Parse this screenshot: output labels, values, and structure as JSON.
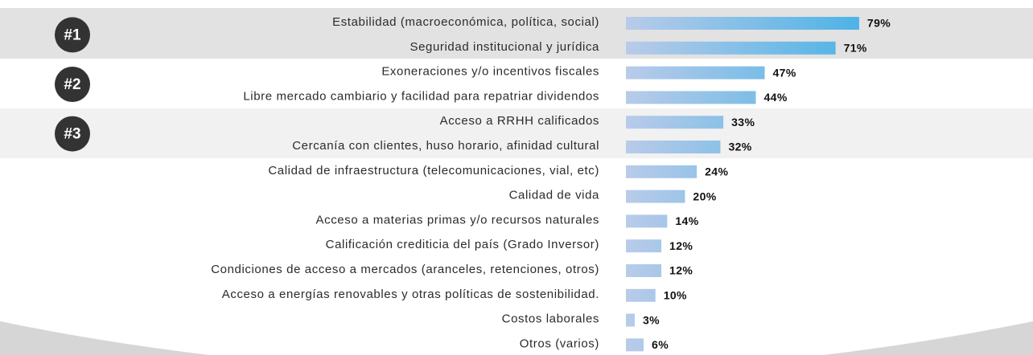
{
  "chart_data": {
    "type": "bar",
    "rank_labels": [
      "#1",
      "#2",
      "#3"
    ],
    "categories": [
      "Estabilidad (macroeconómica, política, social)",
      "Seguridad institucional y jurídica",
      "Exoneraciones y/o incentivos fiscales",
      "Libre mercado cambiario y facilidad para repatriar dividendos",
      "Acceso a RRHH calificados",
      "Cercanía con clientes, huso horario, afinidad cultural",
      "Calidad de infraestructura (telecomunicaciones, vial, etc)",
      "Calidad de vida",
      "Acceso a materias primas y/o recursos naturales",
      "Calificación crediticia del país (Grado Inversor)",
      "Condiciones de acceso a mercados (aranceles, retenciones, otros)",
      "Acceso a energías renovables y otras políticas de sostenibilidad.",
      "Costos laborales",
      "Otros (varios)"
    ],
    "values": [
      79,
      71,
      47,
      44,
      33,
      32,
      24,
      20,
      14,
      12,
      12,
      10,
      3,
      6
    ],
    "value_labels": [
      "79%",
      "71%",
      "47%",
      "44%",
      "33%",
      "32%",
      "24%",
      "20%",
      "14%",
      "12%",
      "12%",
      "10%",
      "3%",
      "6%"
    ],
    "color": [
      "#b9cbe9",
      "#4db3e6"
    ]
  }
}
